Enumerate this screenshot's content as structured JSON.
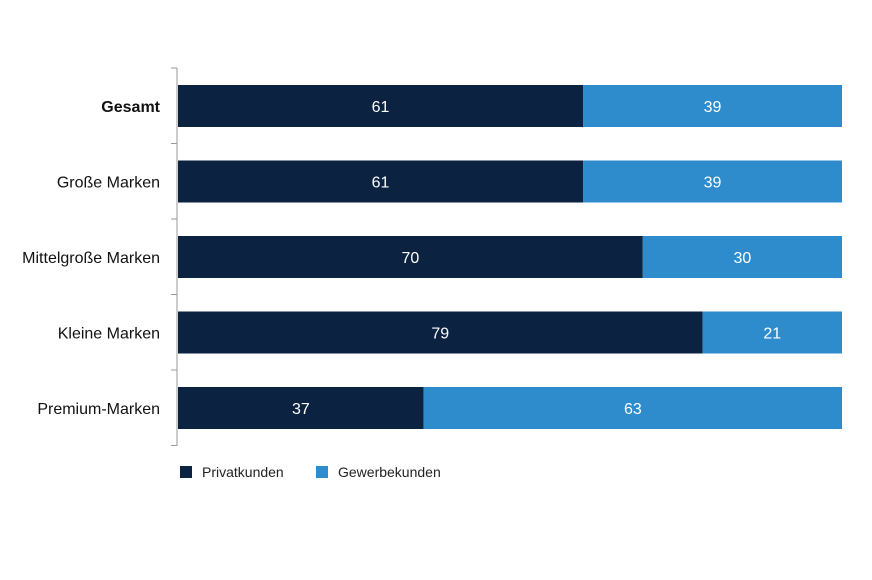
{
  "chart_data": {
    "type": "bar",
    "orientation": "horizontal",
    "stacked": true,
    "categories": [
      "Gesamt",
      "Große Marken",
      "Mittelgroße Marken",
      "Kleine Marken",
      "Premium-Marken"
    ],
    "bold_categories": [
      "Gesamt"
    ],
    "series": [
      {
        "name": "Privatkunden",
        "color": "#0b2341",
        "values": [
          61,
          61,
          70,
          79,
          37
        ]
      },
      {
        "name": "Gewerbekunden",
        "color": "#2e8bcc",
        "values": [
          39,
          39,
          30,
          21,
          63
        ]
      }
    ],
    "xlim": [
      0,
      100
    ],
    "grid": false,
    "legend": "bottom-left"
  }
}
